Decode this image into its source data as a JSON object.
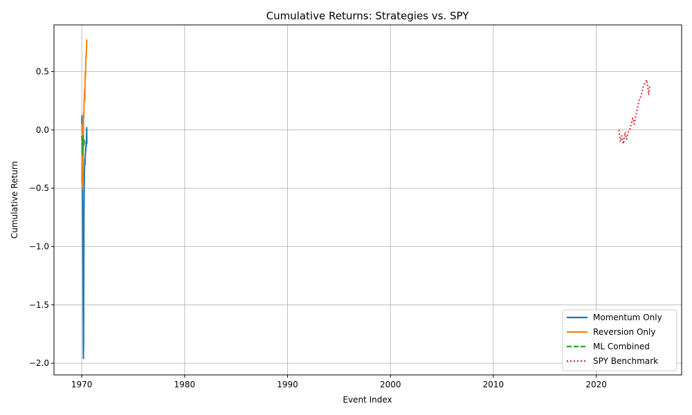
{
  "chart_data": {
    "type": "line",
    "title": "Cumulative Returns: Strategies vs. SPY",
    "xlabel": "Event Index",
    "ylabel": "Cumulative Return",
    "xlim": [
      1967.3,
      2028.3
    ],
    "ylim": [
      -2.1,
      0.9
    ],
    "xticks": [
      1970,
      1980,
      1990,
      2000,
      2010,
      2020
    ],
    "yticks": [
      -2.0,
      -1.5,
      -1.0,
      -0.5,
      0.0,
      0.5
    ],
    "ytick_labels": [
      "−2.0",
      "−1.5",
      "−1.0",
      "−0.5",
      "0.0",
      "0.5"
    ],
    "grid": true,
    "legend_position": "lower-right",
    "series": [
      {
        "name": "Momentum Only",
        "color": "#1f77b4",
        "style": "solid",
        "x": [
          1970.0,
          1970.02,
          1970.04,
          1970.06,
          1970.08,
          1970.1,
          1970.12,
          1970.14,
          1970.16,
          1970.18,
          1970.2,
          1970.22,
          1970.24,
          1970.26,
          1970.28,
          1970.3,
          1970.32,
          1970.34,
          1970.36,
          1970.38,
          1970.4,
          1970.42,
          1970.44,
          1970.46,
          1970.48,
          1970.5
        ],
        "y": [
          0.05,
          0.12,
          -0.1,
          -0.3,
          -0.55,
          -0.85,
          -1.2,
          -1.6,
          -1.96,
          -1.85,
          -1.2,
          -0.7,
          -0.5,
          -0.35,
          -0.32,
          -0.25,
          -0.3,
          -0.22,
          -0.2,
          -0.15,
          -0.18,
          -0.1,
          -0.14,
          -0.05,
          0.02,
          -0.12
        ]
      },
      {
        "name": "Reversion Only",
        "color": "#ff7f0e",
        "style": "solid",
        "x": [
          1970.0,
          1970.02,
          1970.04,
          1970.06,
          1970.08,
          1970.1,
          1970.12,
          1970.14,
          1970.16,
          1970.18,
          1970.2,
          1970.22,
          1970.24,
          1970.26,
          1970.28,
          1970.3,
          1970.32,
          1970.34,
          1970.36,
          1970.38,
          1970.4,
          1970.42,
          1970.44,
          1970.46,
          1970.48,
          1970.5
        ],
        "y": [
          -0.45,
          -0.3,
          0.05,
          0.0,
          -0.2,
          -0.48,
          -0.5,
          -0.2,
          0.0,
          0.15,
          0.1,
          0.2,
          0.25,
          0.3,
          0.35,
          0.25,
          0.4,
          0.5,
          0.45,
          0.55,
          0.6,
          0.65,
          0.62,
          0.7,
          0.77,
          0.75
        ]
      },
      {
        "name": "ML Combined",
        "color": "#2ca02c",
        "style": "dashed",
        "x": [
          1970.0,
          1970.02,
          1970.04,
          1970.06,
          1970.08,
          1970.1,
          1970.12,
          1970.14,
          1970.16,
          1970.18,
          1970.2,
          1970.22,
          1970.24
        ],
        "y": [
          -0.05,
          -0.12,
          -0.2,
          -0.1,
          -0.15,
          -0.22,
          -0.08,
          -0.12,
          -0.05,
          -0.1,
          -0.14,
          -0.08,
          -0.12
        ]
      },
      {
        "name": "SPY Benchmark",
        "color": "#d62728",
        "style": "dotted",
        "x": [
          2022.2,
          2022.35,
          2022.5,
          2022.65,
          2022.8,
          2022.95,
          2023.1,
          2023.25,
          2023.4,
          2023.55,
          2023.7,
          2023.85,
          2024.0,
          2024.15,
          2024.3,
          2024.45,
          2024.6,
          2024.75,
          2024.9,
          2025.0,
          2025.1,
          2025.2
        ],
        "y": [
          0.0,
          -0.1,
          -0.05,
          -0.12,
          -0.02,
          -0.08,
          -0.02,
          0.0,
          0.05,
          0.1,
          0.05,
          0.12,
          0.18,
          0.25,
          0.28,
          0.32,
          0.38,
          0.4,
          0.43,
          0.38,
          0.3,
          0.38
        ]
      }
    ]
  }
}
